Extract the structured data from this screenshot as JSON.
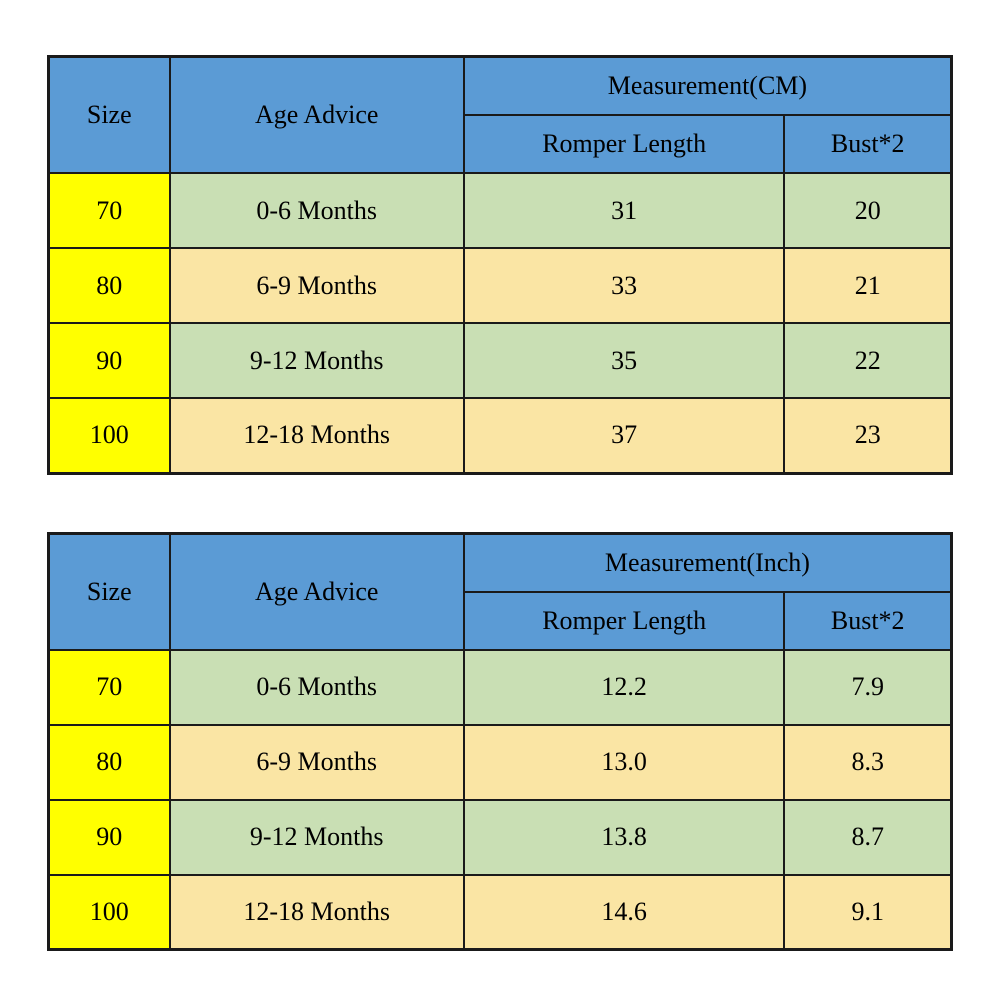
{
  "colors": {
    "header_blue": "#5b9bd5",
    "size_column_yellow": "#ffff00",
    "row_green": "#c9dfb4",
    "row_cream": "#fae5a4",
    "border_black": "#1a1a1a",
    "text": "#000000"
  },
  "chart_data": [
    {
      "type": "table",
      "title": "Measurement(CM)",
      "columns": [
        "Size",
        "Age Advice",
        "Romper Length",
        "Bust*2"
      ],
      "rows": [
        [
          "70",
          "0-6 Months",
          "31",
          "20"
        ],
        [
          "80",
          "6-9 Months",
          "33",
          "21"
        ],
        [
          "90",
          "9-12 Months",
          "35",
          "22"
        ],
        [
          "100",
          "12-18 Months",
          "37",
          "23"
        ]
      ]
    },
    {
      "type": "table",
      "title": "Measurement(Inch)",
      "columns": [
        "Size",
        "Age Advice",
        "Romper Length",
        "Bust*2"
      ],
      "rows": [
        [
          "70",
          "0-6 Months",
          "12.2",
          "7.9"
        ],
        [
          "80",
          "6-9 Months",
          "13.0",
          "8.3"
        ],
        [
          "90",
          "9-12 Months",
          "13.8",
          "8.7"
        ],
        [
          "100",
          "12-18 Months",
          "14.6",
          "9.1"
        ]
      ]
    }
  ]
}
